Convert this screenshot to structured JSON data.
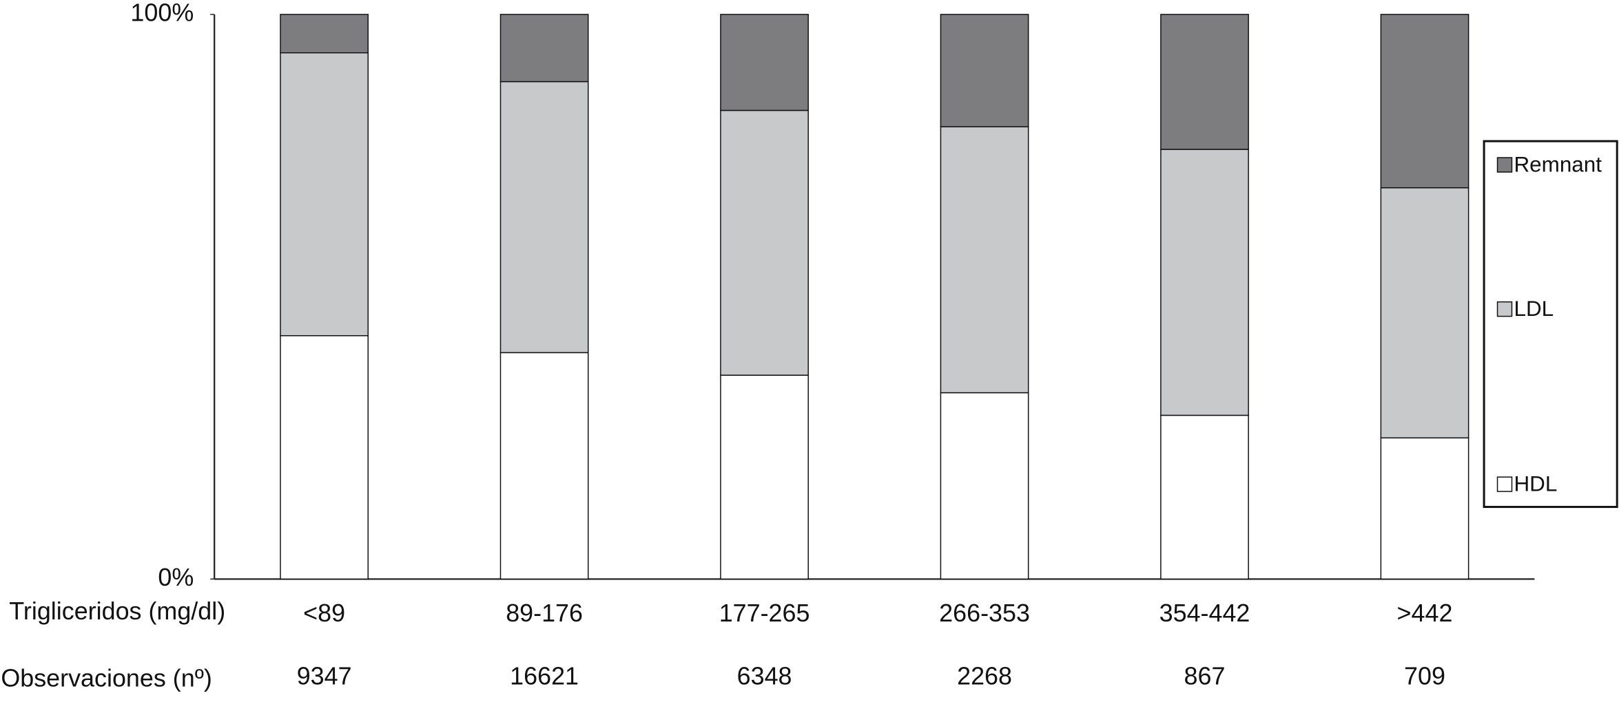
{
  "chart_data": {
    "type": "stacked_bar",
    "x_row_label": "Trigliceridos (mg/dl)",
    "categories": [
      "<89",
      "89-176",
      "177-265",
      "266-353",
      "354-442",
      ">442"
    ],
    "observations_label": "Observaciones (nº)",
    "observations": [
      "9347",
      "16621",
      "6348",
      "2268",
      "867",
      "709"
    ],
    "series": [
      {
        "name": "HDL",
        "color": "#ffffff",
        "values": [
          43.1,
          40.1,
          36.1,
          33.0,
          29.0,
          25.0
        ]
      },
      {
        "name": "LDL",
        "color": "#c8c9cb",
        "values": [
          50.1,
          48.0,
          46.9,
          47.1,
          47.1,
          44.3
        ]
      },
      {
        "name": "Remnant",
        "color": "#7d7d80",
        "values": [
          6.8,
          11.9,
          17.0,
          19.9,
          23.9,
          30.7
        ]
      }
    ],
    "ylim": [
      0,
      100
    ],
    "yticks": [
      {
        "value": 0,
        "label": "0%"
      },
      {
        "value": 100,
        "label": "100%"
      }
    ],
    "legend": "right"
  }
}
